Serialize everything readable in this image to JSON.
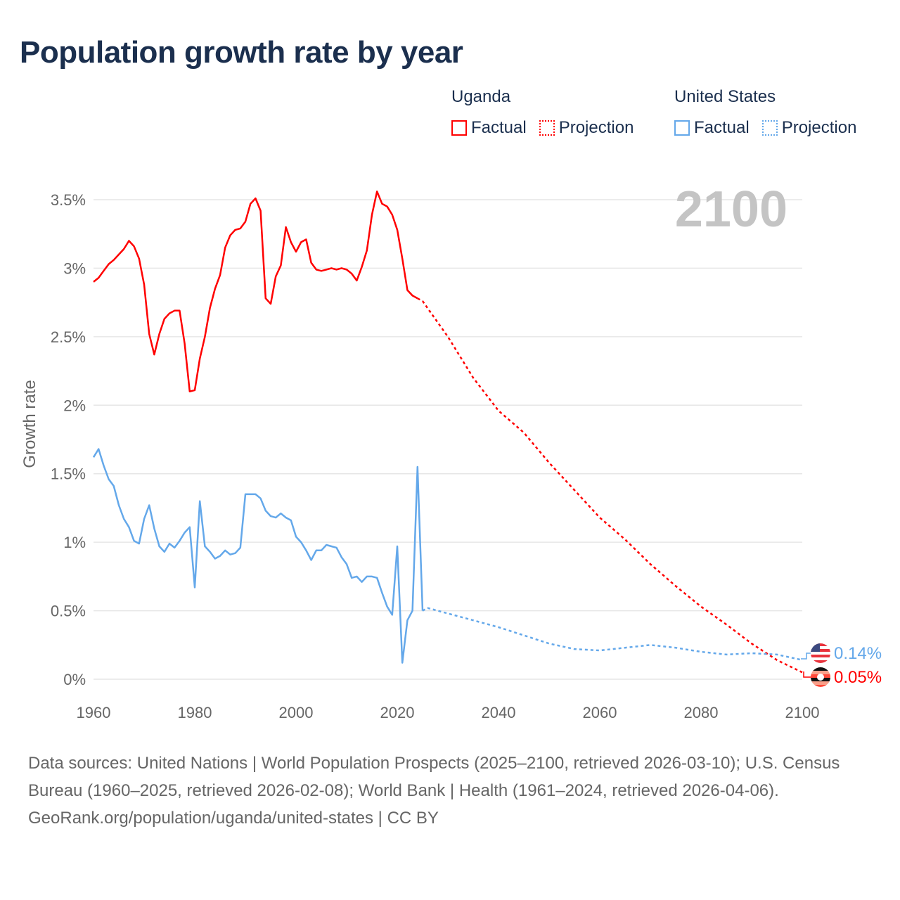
{
  "title": "Population growth rate by year",
  "legend": {
    "groups": [
      {
        "name": "Uganda",
        "color": "#ff0000",
        "factual_label": "Factual",
        "projection_label": "Projection"
      },
      {
        "name": "United States",
        "color": "#64a8ea",
        "factual_label": "Factual",
        "projection_label": "Projection"
      }
    ]
  },
  "year_watermark": "2100",
  "end_labels": {
    "us": "0.14%",
    "uganda": "0.05%"
  },
  "footer": {
    "sources": "Data sources: United Nations | World Population Prospects (2025–2100, retrieved 2026-03-10); U.S. Census Bureau (1960–2025, retrieved 2026-02-08); World Bank | Health (1961–2024, retrieved 2026-04-06).",
    "credit": "GeoRank.org/population/uganda/united-states | CC BY"
  },
  "chart_data": {
    "type": "line",
    "title": "Population growth rate by year",
    "xlabel": "",
    "ylabel": "Growth rate",
    "xlim": [
      1960,
      2100
    ],
    "ylim": [
      0,
      3.5
    ],
    "x_ticks": [
      "1960",
      "1980",
      "2000",
      "2020",
      "2040",
      "2060",
      "2080",
      "2100"
    ],
    "y_ticks": [
      {
        "v": 0,
        "label": "0%"
      },
      {
        "v": 0.5,
        "label": "0.5%"
      },
      {
        "v": 1,
        "label": "1%"
      },
      {
        "v": 1.5,
        "label": "1.5%"
      },
      {
        "v": 2,
        "label": "2%"
      },
      {
        "v": 2.5,
        "label": "2.5%"
      },
      {
        "v": 3,
        "label": "3%"
      },
      {
        "v": 3.5,
        "label": "3.5%"
      }
    ],
    "grid": true,
    "legend_position": "top-right",
    "series": [
      {
        "name": "Uganda Factual",
        "color": "#ff0000",
        "dash": false,
        "start": 1960,
        "values": [
          2.9,
          2.93,
          2.98,
          3.03,
          3.06,
          3.1,
          3.14,
          3.2,
          3.16,
          3.07,
          2.88,
          2.52,
          2.37,
          2.52,
          2.63,
          2.67,
          2.69,
          2.69,
          2.45,
          2.1,
          2.11,
          2.34,
          2.5,
          2.71,
          2.85,
          2.95,
          3.15,
          3.24,
          3.28,
          3.29,
          3.34,
          3.47,
          3.51,
          3.42,
          2.78,
          2.74,
          2.94,
          3.02,
          3.3,
          3.19,
          3.12,
          3.19,
          3.21,
          3.04,
          2.99,
          2.98,
          2.99,
          3.0,
          2.99,
          3.0,
          2.99,
          2.96,
          2.91,
          3.01,
          3.13,
          3.39,
          3.56,
          3.47,
          3.45,
          3.39,
          3.28,
          3.07,
          2.84,
          2.8,
          2.78
        ]
      },
      {
        "name": "Uganda Projection",
        "color": "#ff0000",
        "dash": true,
        "x": [
          2024,
          2025,
          2030,
          2035,
          2040,
          2045,
          2050,
          2055,
          2060,
          2065,
          2070,
          2075,
          2080,
          2085,
          2090,
          2095,
          2100
        ],
        "values": [
          2.78,
          2.76,
          2.5,
          2.2,
          1.96,
          1.8,
          1.58,
          1.38,
          1.18,
          1.02,
          0.84,
          0.68,
          0.53,
          0.4,
          0.26,
          0.14,
          0.05
        ]
      },
      {
        "name": "United States Factual",
        "color": "#64a8ea",
        "dash": false,
        "start": 1960,
        "values": [
          1.62,
          1.68,
          1.56,
          1.46,
          1.41,
          1.27,
          1.17,
          1.11,
          1.01,
          0.99,
          1.17,
          1.27,
          1.1,
          0.97,
          0.93,
          0.99,
          0.96,
          1.01,
          1.07,
          1.11,
          0.67,
          1.3,
          0.97,
          0.93,
          0.88,
          0.9,
          0.94,
          0.91,
          0.92,
          0.96,
          1.35,
          1.35,
          1.35,
          1.32,
          1.23,
          1.19,
          1.18,
          1.21,
          1.18,
          1.16,
          1.04,
          1.0,
          0.94,
          0.87,
          0.94,
          0.94,
          0.98,
          0.97,
          0.96,
          0.89,
          0.84,
          0.74,
          0.75,
          0.71,
          0.75,
          0.75,
          0.74,
          0.63,
          0.53,
          0.47,
          0.97,
          0.12,
          0.43,
          0.5,
          1.55,
          0.5
        ]
      },
      {
        "name": "United States Projection",
        "color": "#64a8ea",
        "dash": true,
        "x": [
          2025,
          2026,
          2030,
          2035,
          2040,
          2045,
          2050,
          2055,
          2060,
          2065,
          2070,
          2075,
          2080,
          2085,
          2090,
          2095,
          2100
        ],
        "values": [
          0.5,
          0.52,
          0.48,
          0.43,
          0.38,
          0.32,
          0.26,
          0.22,
          0.21,
          0.23,
          0.25,
          0.23,
          0.2,
          0.18,
          0.19,
          0.18,
          0.14
        ]
      }
    ]
  }
}
